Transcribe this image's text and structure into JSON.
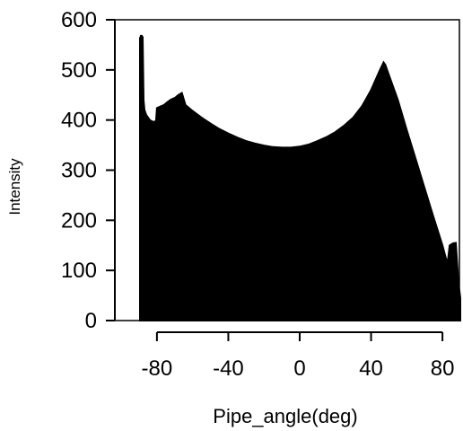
{
  "chart_data": {
    "type": "area",
    "title": "",
    "xlabel": "Pipe_angle(deg)",
    "ylabel": "Intensity",
    "xlim": [
      -90,
      90
    ],
    "ylim": [
      0,
      600
    ],
    "x_ticks": [
      -80,
      -40,
      0,
      40,
      80
    ],
    "y_ticks": [
      0,
      100,
      200,
      300,
      400,
      500,
      600
    ],
    "grid": false,
    "fill_color": "#000000",
    "points": [
      [
        -89.5,
        563
      ],
      [
        -89.0,
        568
      ],
      [
        -88.5,
        568
      ],
      [
        -88.0,
        565
      ],
      [
        -87.5,
        440
      ],
      [
        -87.0,
        420
      ],
      [
        -86.0,
        410
      ],
      [
        -84.0,
        400
      ],
      [
        -82.0,
        396
      ],
      [
        -80.5,
        398
      ],
      [
        -80.0,
        424
      ],
      [
        -78.0,
        427
      ],
      [
        -76.0,
        430
      ],
      [
        -74.0,
        436
      ],
      [
        -72.0,
        441
      ],
      [
        -70.0,
        444
      ],
      [
        -68.0,
        450
      ],
      [
        -66.0,
        454
      ],
      [
        -64.0,
        430
      ],
      [
        -60.0,
        418
      ],
      [
        -55.0,
        405
      ],
      [
        -50.0,
        393
      ],
      [
        -45.0,
        382
      ],
      [
        -40.0,
        373
      ],
      [
        -35.0,
        365
      ],
      [
        -30.0,
        358
      ],
      [
        -25.0,
        353
      ],
      [
        -20.0,
        349
      ],
      [
        -15.0,
        346
      ],
      [
        -10.0,
        345
      ],
      [
        -5.0,
        345
      ],
      [
        0.0,
        347
      ],
      [
        5.0,
        351
      ],
      [
        10.0,
        358
      ],
      [
        15.0,
        366
      ],
      [
        20.0,
        376
      ],
      [
        25.0,
        389
      ],
      [
        30.0,
        405
      ],
      [
        35.0,
        428
      ],
      [
        40.0,
        460
      ],
      [
        45.0,
        500
      ],
      [
        47.0,
        515
      ],
      [
        48.0,
        510
      ],
      [
        50.0,
        490
      ],
      [
        55.0,
        440
      ],
      [
        60.0,
        380
      ],
      [
        65.0,
        322
      ],
      [
        70.0,
        264
      ],
      [
        75.0,
        206
      ],
      [
        80.0,
        150
      ],
      [
        82.0,
        123
      ],
      [
        83.0,
        118
      ],
      [
        84.0,
        150
      ],
      [
        86.0,
        154
      ],
      [
        87.5,
        155
      ],
      [
        88.5,
        100
      ],
      [
        89.0,
        70
      ],
      [
        89.5,
        60
      ],
      [
        90.0,
        45
      ]
    ]
  }
}
